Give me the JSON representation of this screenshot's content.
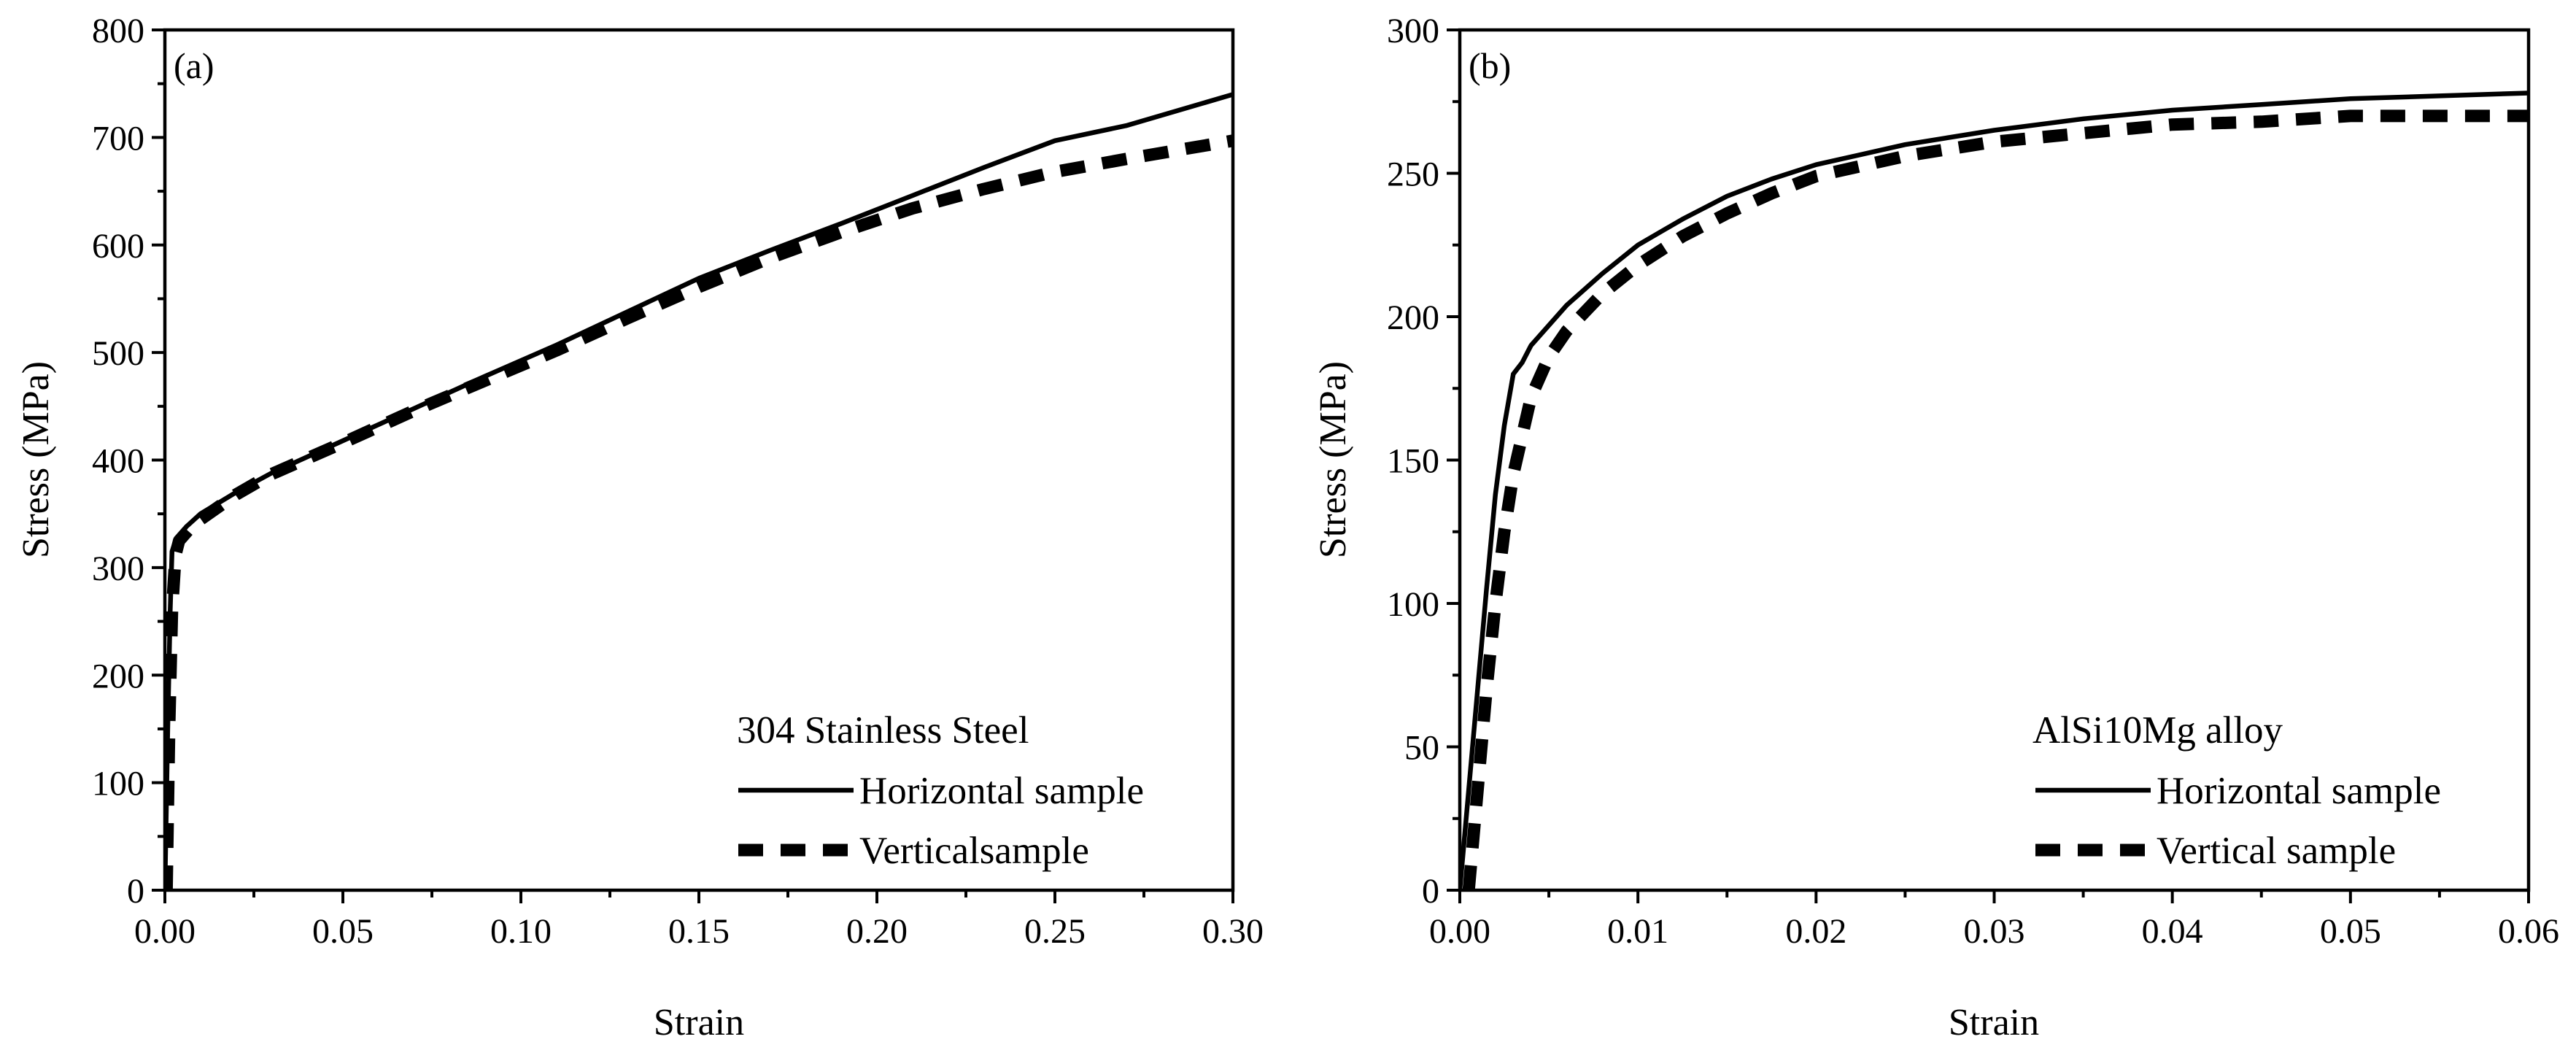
{
  "chart_data": [
    {
      "type": "line",
      "panel_label": "(a)",
      "xlabel": "Strain",
      "ylabel": "Stress (MPa)",
      "xlim": [
        0,
        0.3
      ],
      "ylim": [
        0,
        800
      ],
      "x_ticks": [
        "0.00",
        "0.05",
        "0.10",
        "0.15",
        "0.20",
        "0.25",
        "0.30"
      ],
      "y_ticks": [
        "0",
        "100",
        "200",
        "300",
        "400",
        "500",
        "600",
        "700",
        "800"
      ],
      "x_tick_values": [
        0,
        0.05,
        0.1,
        0.15,
        0.2,
        0.25,
        0.3
      ],
      "y_tick_values": [
        0,
        100,
        200,
        300,
        400,
        500,
        600,
        700,
        800
      ],
      "x_minor_step": 0.025,
      "y_minor_step": 50,
      "legend": {
        "title": "304 Stainless Steel",
        "location": "bottom-right",
        "entries": [
          "Horizontal sample",
          "Verticalsample"
        ]
      },
      "series": [
        {
          "name": "Horizontal sample",
          "style": "solid",
          "x": [
            0,
            0.0008,
            0.0015,
            0.002,
            0.003,
            0.006,
            0.01,
            0.02,
            0.03,
            0.05,
            0.07,
            0.09,
            0.11,
            0.13,
            0.15,
            0.17,
            0.19,
            0.21,
            0.23,
            0.25,
            0.27,
            0.3
          ],
          "y": [
            0,
            150,
            260,
            315,
            325,
            338,
            350,
            370,
            388,
            418,
            448,
            478,
            507,
            538,
            569,
            595,
            620,
            646,
            672,
            697,
            711,
            740
          ]
        },
        {
          "name": "Verticalsample",
          "style": "dashed",
          "x": [
            0.0005,
            0.0012,
            0.002,
            0.003,
            0.004,
            0.008,
            0.02,
            0.03,
            0.05,
            0.07,
            0.09,
            0.11,
            0.13,
            0.15,
            0.17,
            0.19,
            0.21,
            0.23,
            0.25,
            0.27,
            0.3
          ],
          "y": [
            0,
            150,
            260,
            312,
            325,
            340,
            368,
            387,
            416,
            446,
            474,
            502,
            532,
            561,
            588,
            612,
            634,
            652,
            668,
            680,
            697
          ]
        }
      ]
    },
    {
      "type": "line",
      "panel_label": "(b)",
      "xlabel": "Strain",
      "ylabel": "Stress (MPa)",
      "xlim": [
        0,
        0.06
      ],
      "ylim": [
        0,
        300
      ],
      "x_ticks": [
        "0.00",
        "0.01",
        "0.02",
        "0.03",
        "0.04",
        "0.05",
        "0.06"
      ],
      "y_ticks": [
        "0",
        "50",
        "100",
        "150",
        "200",
        "250",
        "300"
      ],
      "x_tick_values": [
        0,
        0.01,
        0.02,
        0.03,
        0.04,
        0.05,
        0.06
      ],
      "y_tick_values": [
        0,
        50,
        100,
        150,
        200,
        250,
        300
      ],
      "x_minor_step": 0.005,
      "y_minor_step": 25,
      "legend": {
        "title": "AlSi10Mg alloy",
        "location": "bottom-right",
        "entries": [
          "Horizontal sample",
          "Vertical sample"
        ]
      },
      "series": [
        {
          "name": "Horizontal sample",
          "style": "solid",
          "x": [
            0,
            0.0005,
            0.001,
            0.0015,
            0.002,
            0.0025,
            0.003,
            0.0035,
            0.004,
            0.005,
            0.006,
            0.008,
            0.01,
            0.0125,
            0.015,
            0.0175,
            0.02,
            0.025,
            0.03,
            0.035,
            0.04,
            0.045,
            0.05,
            0.055,
            0.06
          ],
          "y": [
            0,
            35,
            70,
            105,
            138,
            162,
            180,
            184,
            190,
            197,
            204,
            215,
            225,
            234,
            242,
            248,
            253,
            260,
            265,
            269,
            272,
            274,
            276,
            277,
            278
          ]
        },
        {
          "name": "Vertical sample",
          "style": "dashed",
          "x": [
            0.0005,
            0.001,
            0.0015,
            0.002,
            0.0025,
            0.003,
            0.004,
            0.005,
            0.006,
            0.008,
            0.01,
            0.0125,
            0.015,
            0.0175,
            0.02,
            0.025,
            0.03,
            0.035,
            0.04,
            0.045,
            0.05,
            0.055,
            0.06
          ],
          "y": [
            0,
            35,
            70,
            100,
            125,
            145,
            172,
            186,
            195,
            208,
            218,
            228,
            236,
            243,
            249,
            256,
            261,
            264,
            267,
            268,
            270,
            270,
            270
          ]
        }
      ]
    }
  ]
}
